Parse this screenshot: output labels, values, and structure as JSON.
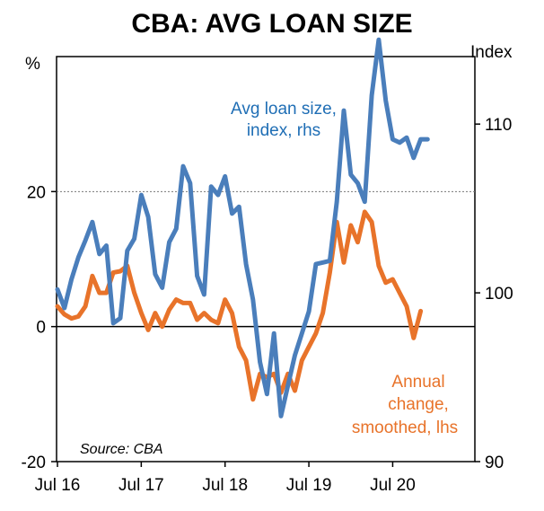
{
  "chart_data": {
    "type": "line",
    "title": "CBA: AVG LOAN SIZE",
    "left_axis": {
      "unit": "%",
      "ylim": [
        -20,
        40
      ],
      "ticks": [
        -20,
        0,
        20
      ]
    },
    "right_axis": {
      "unit": "Index",
      "ylim": [
        90,
        114
      ],
      "ticks": [
        90,
        100,
        110
      ]
    },
    "x_ticks": [
      {
        "label": "Jul 16",
        "t": 0
      },
      {
        "label": "Jul 17",
        "t": 12
      },
      {
        "label": "Jul 18",
        "t": 24
      },
      {
        "label": "Jul 19",
        "t": 36
      },
      {
        "label": "Jul 20",
        "t": 48
      }
    ],
    "x_range": [
      0,
      56
    ],
    "reference_line": {
      "axis": "left",
      "value": 20,
      "style": "dotted"
    },
    "zero_line": {
      "axis": "left",
      "value": 0
    },
    "series": [
      {
        "name": "Avg loan size, index, rhs",
        "axis": "right",
        "color": "#4a7ebb",
        "start_month": 0,
        "values": [
          100.2,
          99.1,
          100.8,
          102.1,
          103.1,
          104.2,
          102.3,
          102.8,
          98.2,
          98.5,
          102.5,
          103.2,
          105.8,
          104.5,
          101.1,
          100.3,
          103.0,
          103.8,
          107.5,
          106.5,
          101.0,
          99.9,
          106.3,
          105.8,
          106.9,
          104.7,
          105.1,
          101.7,
          99.6,
          95.9,
          94.0,
          97.6,
          92.7,
          94.5,
          96.3,
          97.6,
          98.9,
          101.7,
          101.8,
          101.9,
          105.4,
          110.8,
          107.0,
          106.5,
          105.4,
          111.7,
          115.0,
          111.4,
          109.1,
          108.9,
          109.2,
          108.0,
          109.1,
          109.1
        ]
      },
      {
        "name": "Annual change, smoothed, lhs",
        "axis": "left",
        "color": "#e8732a",
        "start_month": 0,
        "values": [
          3.0,
          1.8,
          1.2,
          1.5,
          3.0,
          7.5,
          5.0,
          5.0,
          8.0,
          8.2,
          9.0,
          5.0,
          2.0,
          -0.5,
          2.0,
          0.0,
          2.5,
          4.0,
          3.5,
          3.5,
          1.0,
          2.0,
          1.0,
          0.5,
          4.0,
          2.0,
          -3.0,
          -5.0,
          -10.8,
          -7.0,
          -7.5,
          -7.0,
          -9.8,
          -7.0,
          -9.5,
          -5.0,
          -3.0,
          -1.0,
          2.0,
          8.0,
          15.5,
          9.5,
          15.0,
          12.5,
          17.0,
          15.5,
          9.0,
          6.5,
          7.0,
          5.0,
          3.0,
          -1.7,
          2.3
        ]
      }
    ],
    "annotations": [
      {
        "text_lines": [
          "Avg loan size,",
          "index, rhs"
        ],
        "color": "#1f6eb5"
      },
      {
        "text_lines": [
          "Annual",
          "change,",
          "smoothed, lhs"
        ],
        "color": "#e8732a"
      }
    ],
    "source": "Source: CBA"
  }
}
